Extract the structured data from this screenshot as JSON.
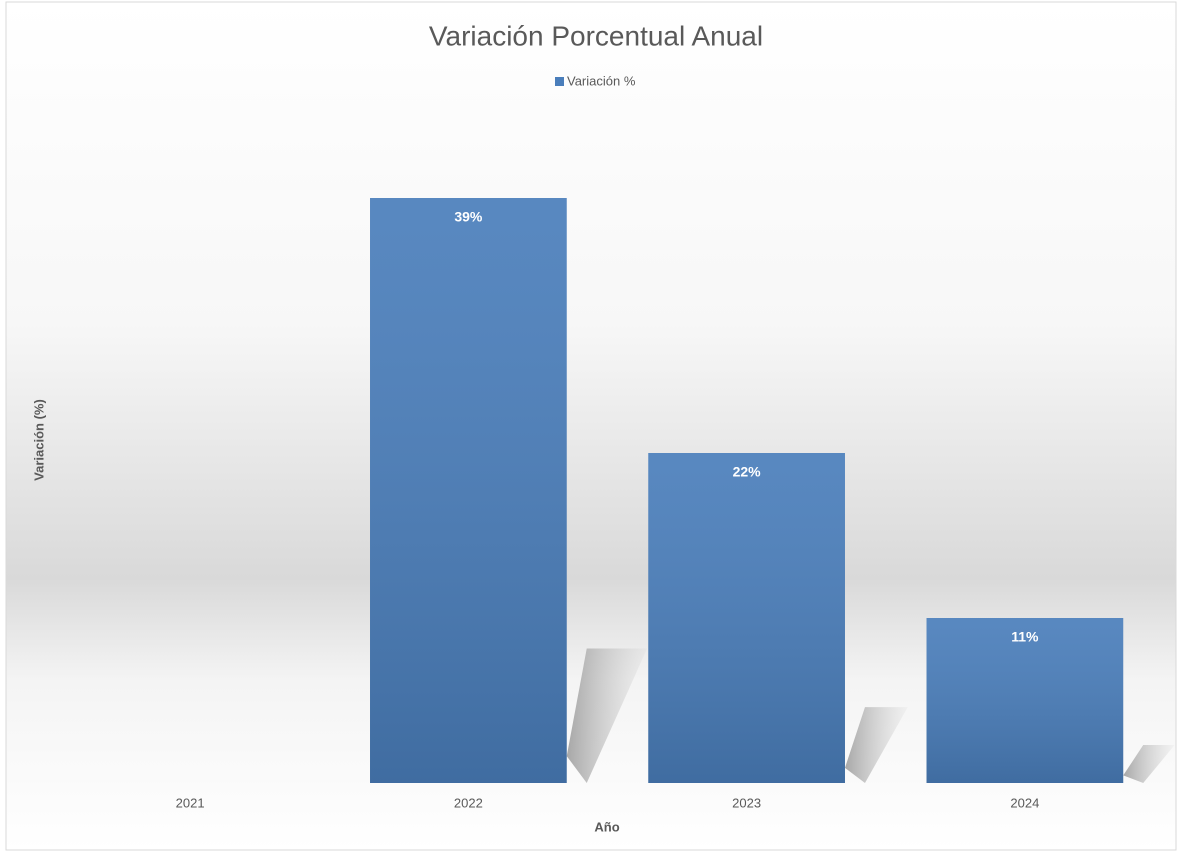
{
  "chart_data": {
    "type": "bar",
    "title": "Variación Porcentual Anual",
    "xlabel": "Año",
    "ylabel": "Variación (%)",
    "categories": [
      "2021",
      "2022",
      "2023",
      "2024"
    ],
    "series": [
      {
        "name": "Variación %",
        "color": "#4a7ebb",
        "values": [
          null,
          39,
          22,
          11
        ],
        "value_labels": [
          null,
          "39%",
          "22%",
          "11%"
        ]
      }
    ],
    "ylim": [
      0,
      40
    ],
    "legend": "top"
  }
}
